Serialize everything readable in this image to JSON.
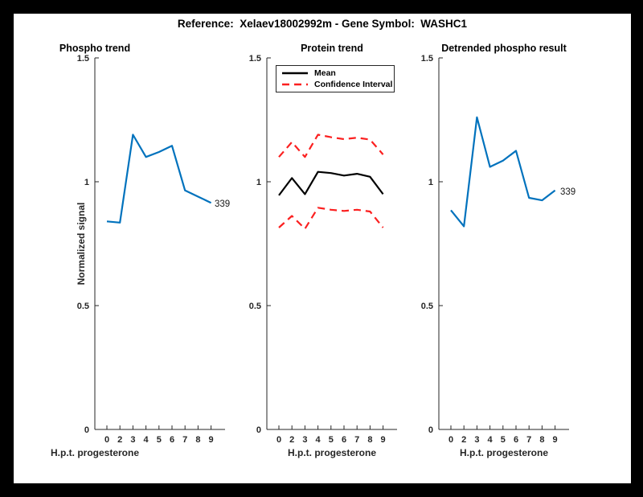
{
  "figure": {
    "title": "Reference:  Xelaev18002992m - Gene Symbol:  WASHC1",
    "border_color": "#000000",
    "background_color": "#ffffff"
  },
  "axes_shared": {
    "xlabel": "H.p.t. progesterone",
    "ylabel": "Normalized signal",
    "xticklabels": [
      "0",
      "2",
      "3",
      "4",
      "5",
      "6",
      "7",
      "8",
      "9"
    ],
    "yticks": [
      0,
      0.5,
      1,
      1.5
    ],
    "yticklabels": [
      "0",
      "0.5",
      "1",
      "1.5"
    ],
    "ylim": [
      0,
      1.5
    ],
    "grid": false,
    "axis_color": "#262626"
  },
  "colors": {
    "blue": "#0072bd",
    "red": "#fb2020",
    "black": "#000000"
  },
  "chart_data": [
    {
      "type": "line",
      "title": "Phospho trend",
      "xlabel": "H.p.t. progesterone",
      "ylabel": "Normalized signal",
      "categories": [
        "0",
        "2",
        "3",
        "4",
        "5",
        "6",
        "7",
        "8",
        "9"
      ],
      "ylim": [
        0,
        1.5
      ],
      "end_label": "339",
      "series": [
        {
          "name": "339",
          "color": "blue",
          "style": "solid",
          "values": [
            0.84,
            0.835,
            1.19,
            1.1,
            1.12,
            1.145,
            0.965,
            0.94,
            0.915
          ]
        }
      ]
    },
    {
      "type": "line",
      "title": "Protein trend",
      "xlabel": "H.p.t. progesterone",
      "categories": [
        "0",
        "2",
        "3",
        "4",
        "5",
        "6",
        "7",
        "8",
        "9"
      ],
      "ylim": [
        0,
        1.5
      ],
      "legend": [
        "Mean",
        "Confidence Interval"
      ],
      "legend_position": "top-left-inside",
      "series": [
        {
          "name": "Mean",
          "color": "black",
          "style": "solid",
          "values": [
            0.945,
            1.015,
            0.95,
            1.04,
            1.035,
            1.025,
            1.032,
            1.02,
            0.95
          ]
        },
        {
          "name": "Confidence Interval (upper)",
          "color": "red",
          "style": "dashed",
          "values": [
            1.1,
            1.16,
            1.1,
            1.19,
            1.18,
            1.172,
            1.178,
            1.17,
            1.11
          ]
        },
        {
          "name": "Confidence Interval (lower)",
          "color": "red",
          "style": "dashed",
          "values": [
            0.815,
            0.862,
            0.81,
            0.895,
            0.887,
            0.882,
            0.887,
            0.88,
            0.815
          ]
        }
      ]
    },
    {
      "type": "line",
      "title": "Detrended phospho result",
      "xlabel": "H.p.t. progesterone",
      "categories": [
        "0",
        "2",
        "3",
        "4",
        "5",
        "6",
        "7",
        "8",
        "9"
      ],
      "ylim": [
        0,
        1.5
      ],
      "end_label": "339",
      "series": [
        {
          "name": "339",
          "color": "blue",
          "style": "solid",
          "values": [
            0.885,
            0.82,
            1.26,
            1.06,
            1.085,
            1.125,
            0.935,
            0.925,
            0.965
          ]
        }
      ]
    }
  ]
}
